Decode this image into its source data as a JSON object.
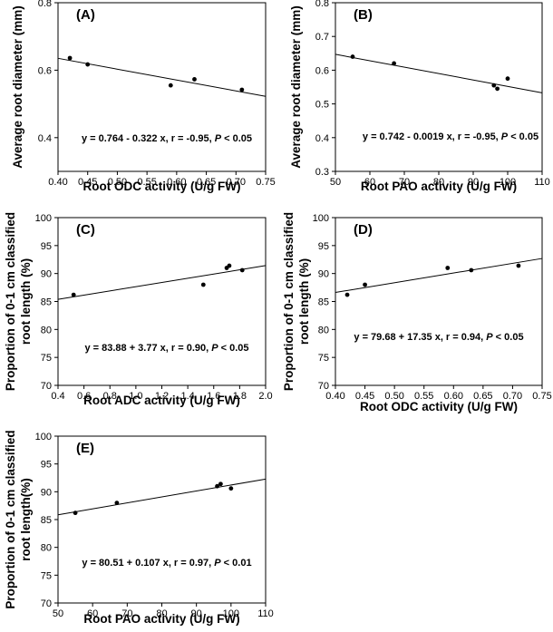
{
  "chart_data": [
    {
      "type": "scatter",
      "panel_label": "(A)",
      "xlabel": "Root ODC activity (U/g FW)",
      "ylabel": [
        "Average root diameter (mm)"
      ],
      "xlim": [
        0.4,
        0.75
      ],
      "ylim": [
        0.3,
        0.8
      ],
      "xticks": [
        0.4,
        0.45,
        0.5,
        0.55,
        0.6,
        0.65,
        0.7,
        0.75
      ],
      "xtick_labels": [
        "0.40",
        "0.45",
        "0.50",
        "0.55",
        "0.60",
        "0.65",
        "0.70",
        "0.75"
      ],
      "yticks": [
        0.4,
        0.6,
        0.8
      ],
      "ytick_labels": [
        "0.4",
        "0.6",
        "0.8"
      ],
      "points": [
        [
          0.42,
          0.636
        ],
        [
          0.45,
          0.617
        ],
        [
          0.59,
          0.555
        ],
        [
          0.63,
          0.573
        ],
        [
          0.71,
          0.542
        ]
      ],
      "fit": {
        "intercept": 0.764,
        "slope": -0.322,
        "x_range": [
          0.4,
          0.75
        ]
      },
      "equation": {
        "main": "y = 0.764 - 0.322 x, r = -0.95, ",
        "p": "P",
        "tail": " < 0.05"
      }
    },
    {
      "type": "scatter",
      "panel_label": "(B)",
      "xlabel": "Root PAO activity (U/g FW)",
      "ylabel": [
        "Average root diameter (mm)"
      ],
      "xlim": [
        50,
        110
      ],
      "ylim": [
        0.3,
        0.8
      ],
      "xticks": [
        50,
        60,
        70,
        80,
        90,
        100,
        110
      ],
      "xtick_labels": [
        "50",
        "60",
        "70",
        "80",
        "90",
        "100",
        "110"
      ],
      "yticks": [
        0.3,
        0.4,
        0.5,
        0.6,
        0.7,
        0.8
      ],
      "ytick_labels": [
        "0.3",
        "0.4",
        "0.5",
        "0.6",
        "0.7",
        "0.8"
      ],
      "points": [
        [
          55,
          0.64
        ],
        [
          67,
          0.62
        ],
        [
          96,
          0.555
        ],
        [
          97,
          0.545
        ],
        [
          100,
          0.575
        ]
      ],
      "fit": {
        "intercept": 0.742,
        "slope": -0.0019,
        "x_range": [
          50,
          110
        ]
      },
      "equation": {
        "main": "y = 0.742 - 0.0019 x, r = -0.95, ",
        "p": "P",
        "tail": " < 0.05"
      }
    },
    {
      "type": "scatter",
      "panel_label": "(C)",
      "xlabel": "Root ADC activity (U/g FW)",
      "ylabel": [
        "Proportion of 0-1 cm classified",
        "root length (%)"
      ],
      "xlim": [
        0.4,
        2.0
      ],
      "ylim": [
        70,
        100
      ],
      "xticks": [
        0.4,
        0.6,
        0.8,
        1.0,
        1.2,
        1.4,
        1.6,
        1.8,
        2.0
      ],
      "xtick_labels": [
        "0.4",
        "0.6",
        "0.8",
        "1.0",
        "1.2",
        "1.4",
        "1.6",
        "1.8",
        "2.0"
      ],
      "yticks": [
        70,
        75,
        80,
        85,
        90,
        95,
        100
      ],
      "ytick_labels": [
        "70",
        "75",
        "80",
        "85",
        "90",
        "95",
        "100"
      ],
      "points": [
        [
          0.52,
          86.2
        ],
        [
          1.52,
          88.0
        ],
        [
          1.7,
          91.0
        ],
        [
          1.72,
          91.4
        ],
        [
          1.82,
          90.6
        ]
      ],
      "fit": {
        "intercept": 83.88,
        "slope": 3.77,
        "x_range": [
          0.4,
          2.0
        ]
      },
      "equation": {
        "main": "y = 83.88 + 3.77 x, r = 0.90, ",
        "p": "P",
        "tail": " < 0.05"
      }
    },
    {
      "type": "scatter",
      "panel_label": "(D)",
      "xlabel": "Root ODC activity (U/g FW)",
      "ylabel": [
        "Proportion of 0-1 cm classified",
        "root length (%)"
      ],
      "xlim": [
        0.4,
        0.75
      ],
      "ylim": [
        70,
        100
      ],
      "xticks": [
        0.4,
        0.45,
        0.5,
        0.55,
        0.6,
        0.65,
        0.7,
        0.75
      ],
      "xtick_labels": [
        "0.40",
        "0.45",
        "0.50",
        "0.55",
        "0.60",
        "0.65",
        "0.70",
        "0.75"
      ],
      "yticks": [
        70,
        75,
        80,
        85,
        90,
        95,
        100
      ],
      "ytick_labels": [
        "70",
        "75",
        "80",
        "85",
        "90",
        "95",
        "100"
      ],
      "points": [
        [
          0.42,
          86.2
        ],
        [
          0.45,
          88.0
        ],
        [
          0.59,
          91.0
        ],
        [
          0.63,
          90.6
        ],
        [
          0.71,
          91.4
        ]
      ],
      "fit": {
        "intercept": 79.68,
        "slope": 17.35,
        "x_range": [
          0.4,
          0.75
        ]
      },
      "equation": {
        "main": "y = 79.68 + 17.35 x, r = 0.94, ",
        "p": "P",
        "tail": " < 0.05"
      }
    },
    {
      "type": "scatter",
      "panel_label": "(E)",
      "xlabel": "Root PAO activity (U/g FW)",
      "ylabel": [
        "Proportion of 0-1 cm classified",
        "root length(%)"
      ],
      "xlim": [
        50,
        110
      ],
      "ylim": [
        70,
        100
      ],
      "xticks": [
        50,
        60,
        70,
        80,
        90,
        100,
        110
      ],
      "xtick_labels": [
        "50",
        "60",
        "70",
        "80",
        "90",
        "100",
        "110"
      ],
      "yticks": [
        70,
        75,
        80,
        85,
        90,
        95,
        100
      ],
      "ytick_labels": [
        "70",
        "75",
        "80",
        "85",
        "90",
        "95",
        "100"
      ],
      "points": [
        [
          55,
          86.2
        ],
        [
          67,
          88.0
        ],
        [
          96,
          91.0
        ],
        [
          97,
          91.4
        ],
        [
          100,
          90.6
        ]
      ],
      "fit": {
        "intercept": 80.51,
        "slope": 0.107,
        "x_range": [
          50,
          110
        ]
      },
      "equation": {
        "main": "y = 80.51 + 0.107 x, r = 0.97, ",
        "p": "P",
        "tail": " < 0.01"
      }
    }
  ]
}
